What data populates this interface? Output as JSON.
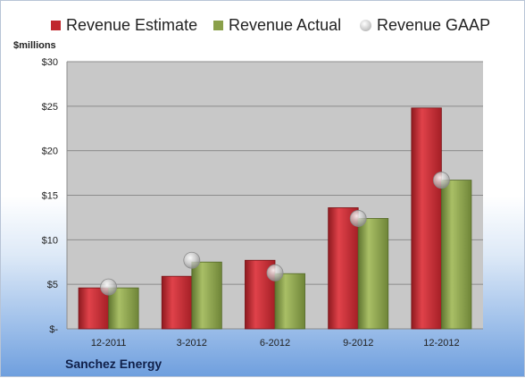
{
  "chart_data": {
    "type": "bar",
    "categories": [
      "12-2011",
      "3-2012",
      "6-2012",
      "9-2012",
      "12-2012"
    ],
    "series": [
      {
        "name": "Revenue Estimate",
        "values": [
          4.6,
          5.9,
          7.7,
          13.6,
          24.8
        ],
        "color": "#c0272d"
      },
      {
        "name": "Revenue Actual",
        "values": [
          4.6,
          7.5,
          6.2,
          12.4,
          16.7
        ],
        "color": "#8aa04a"
      },
      {
        "name": "Revenue GAAP",
        "values": [
          4.7,
          7.7,
          6.3,
          12.4,
          16.7
        ],
        "marker": "circle",
        "color": "#b3b3b3"
      }
    ],
    "ylabel": "$millions",
    "ylim": [
      0,
      30
    ],
    "yticks": [
      0,
      5,
      10,
      15,
      20,
      25,
      30
    ],
    "ytick_labels": [
      "$-",
      "$5",
      "$10",
      "$15",
      "$20",
      "$25",
      "$30"
    ],
    "grid": true,
    "legend_position": "top",
    "plot_background": "#c8c8c8"
  },
  "company": "Sanchez Energy"
}
